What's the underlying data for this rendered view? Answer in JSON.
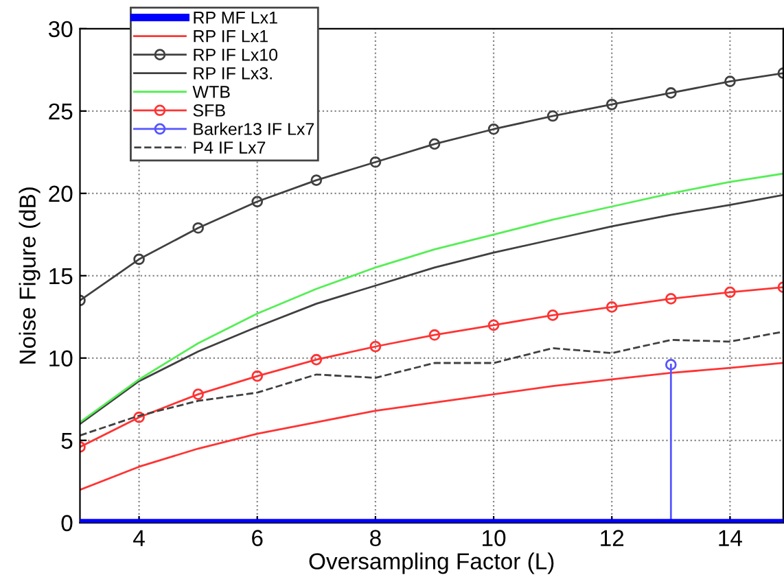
{
  "chart_data": {
    "type": "line",
    "xlabel": "Oversampling Factor (L)",
    "ylabel": "Noise Figure (dB)",
    "xlim": [
      3,
      14.9
    ],
    "ylim": [
      0,
      30
    ],
    "xticks": [
      4,
      6,
      8,
      10,
      12,
      14
    ],
    "yticks": [
      0,
      5,
      10,
      15,
      20,
      25,
      30
    ],
    "grid": true,
    "legend": "top left",
    "series": [
      {
        "name": "RP MF Lx1",
        "color": "#0000ff",
        "x": [
          3,
          14.9
        ],
        "values": [
          0,
          0
        ]
      },
      {
        "name": "RP IF Lx1",
        "color": "#ff3333",
        "x": [
          3,
          4,
          5,
          6,
          7,
          8,
          9,
          10,
          11,
          12,
          13,
          14,
          14.9
        ],
        "values": [
          2.0,
          3.4,
          4.5,
          5.4,
          6.1,
          6.8,
          7.3,
          7.8,
          8.3,
          8.7,
          9.1,
          9.4,
          9.7
        ]
      },
      {
        "name": "RP IF Lx10",
        "color": "#404040",
        "marker": "circle",
        "x": [
          3,
          4,
          5,
          6,
          7,
          8,
          9,
          10,
          11,
          12,
          13,
          14,
          14.9
        ],
        "values": [
          13.5,
          16.0,
          17.9,
          19.5,
          20.8,
          21.9,
          23.0,
          23.9,
          24.7,
          25.4,
          26.1,
          26.8,
          27.3
        ]
      },
      {
        "name": "RP IF Lx3.",
        "color": "#404040",
        "x": [
          3,
          4,
          5,
          6,
          7,
          8,
          9,
          10,
          11,
          12,
          13,
          14,
          14.9
        ],
        "values": [
          6.0,
          8.6,
          10.4,
          11.9,
          13.3,
          14.4,
          15.5,
          16.4,
          17.2,
          18.0,
          18.7,
          19.3,
          19.9
        ]
      },
      {
        "name": "WTB",
        "color": "#55ee55",
        "x": [
          3,
          4,
          5,
          6,
          7,
          8,
          9,
          10,
          11,
          12,
          13,
          14,
          14.9
        ],
        "values": [
          6.1,
          8.7,
          10.9,
          12.7,
          14.2,
          15.5,
          16.6,
          17.5,
          18.4,
          19.2,
          20.0,
          20.7,
          21.2
        ]
      },
      {
        "name": "SFB",
        "color": "#ff3333",
        "marker": "circle",
        "x": [
          3,
          4,
          5,
          6,
          7,
          8,
          9,
          10,
          11,
          12,
          13,
          14,
          14.9
        ],
        "values": [
          4.6,
          6.4,
          7.8,
          8.9,
          9.9,
          10.7,
          11.4,
          12.0,
          12.6,
          13.1,
          13.6,
          14.0,
          14.3
        ]
      },
      {
        "name": "Barker13 IF Lx7",
        "type": "lollipop",
        "color": "#5555ff",
        "marker": "circle",
        "x": [
          13
        ],
        "values": [
          9.6
        ]
      },
      {
        "name": "P4 IF Lx7",
        "color": "#404040",
        "line_style": "dashed",
        "x": [
          3,
          4,
          5,
          6,
          7,
          8,
          9,
          10,
          11,
          12,
          13,
          14,
          14.9
        ],
        "values": [
          5.3,
          6.5,
          7.4,
          7.9,
          9.0,
          8.8,
          9.7,
          9.7,
          10.6,
          10.3,
          11.1,
          11.0,
          11.6
        ]
      }
    ]
  }
}
